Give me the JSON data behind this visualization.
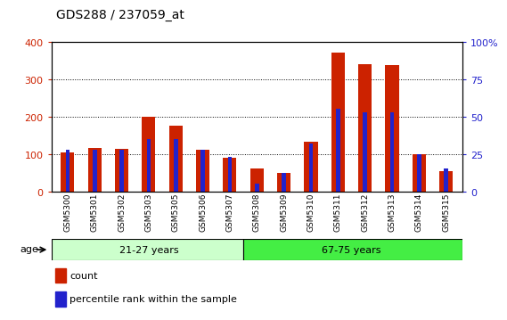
{
  "title": "GDS288 / 237059_at",
  "categories": [
    "GSM5300",
    "GSM5301",
    "GSM5302",
    "GSM5303",
    "GSM5305",
    "GSM5306",
    "GSM5307",
    "GSM5308",
    "GSM5309",
    "GSM5310",
    "GSM5311",
    "GSM5312",
    "GSM5313",
    "GSM5314",
    "GSM5315"
  ],
  "count": [
    105,
    115,
    113,
    200,
    175,
    110,
    90,
    60,
    48,
    133,
    370,
    340,
    337,
    98,
    55
  ],
  "percentile": [
    28,
    28,
    28,
    35,
    35,
    28,
    23,
    5,
    12,
    32,
    55,
    53,
    53,
    25,
    15
  ],
  "group1_label": "21-27 years",
  "group2_label": "67-75 years",
  "group1_indices": [
    0,
    1,
    2,
    3,
    4,
    5,
    6
  ],
  "group2_indices": [
    7,
    8,
    9,
    10,
    11,
    12,
    13,
    14
  ],
  "ylim_left": [
    0,
    400
  ],
  "ylim_right": [
    0,
    100
  ],
  "yticks_left": [
    0,
    100,
    200,
    300,
    400
  ],
  "yticks_right": [
    0,
    25,
    50,
    75,
    100
  ],
  "bar_color_red": "#cc2200",
  "bar_color_blue": "#2222cc",
  "group1_bg": "#ccffcc",
  "group2_bg": "#44ee44",
  "axis_label_left_color": "#cc2200",
  "axis_label_right_color": "#2222cc",
  "legend_count_label": "count",
  "legend_percentile_label": "percentile rank within the sample",
  "age_label": "age"
}
